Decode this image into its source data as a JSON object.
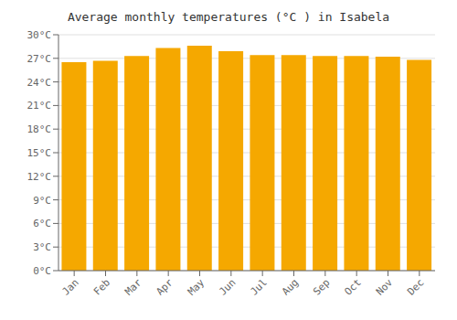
{
  "chart_data": {
    "type": "bar",
    "title": "Average monthly temperatures (°C ) in Isabela",
    "categories": [
      "Jan",
      "Feb",
      "Mar",
      "Apr",
      "May",
      "Jun",
      "Jul",
      "Aug",
      "Sep",
      "Oct",
      "Nov",
      "Dec"
    ],
    "values": [
      26.5,
      26.7,
      27.3,
      28.3,
      28.6,
      27.9,
      27.4,
      27.4,
      27.3,
      27.3,
      27.2,
      26.8
    ],
    "color": "#F5A800",
    "ylim": [
      0,
      30
    ],
    "yticks": [
      {
        "value": 0,
        "label": "0°C"
      },
      {
        "value": 3,
        "label": "3°C"
      },
      {
        "value": 6,
        "label": "6°C"
      },
      {
        "value": 9,
        "label": "9°C"
      },
      {
        "value": 12,
        "label": "12°C"
      },
      {
        "value": 15,
        "label": "15°C"
      },
      {
        "value": 18,
        "label": "18°C"
      },
      {
        "value": 21,
        "label": "21°C"
      },
      {
        "value": 24,
        "label": "24°C"
      },
      {
        "value": 27,
        "label": "27°C"
      },
      {
        "value": 30,
        "label": "30°C"
      }
    ],
    "grid": true
  }
}
